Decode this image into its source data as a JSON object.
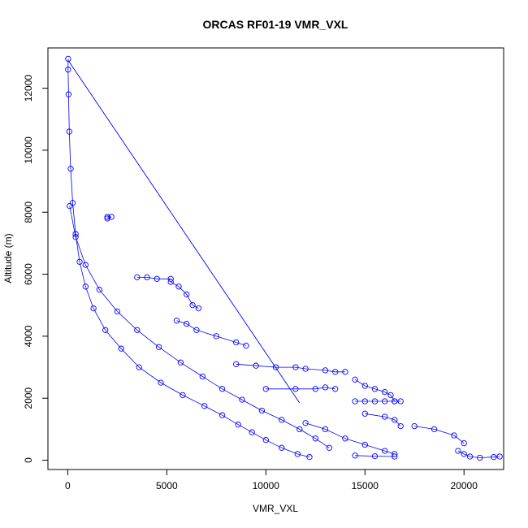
{
  "chart_data": {
    "type": "scatter",
    "title": "ORCAS RF01-19 VMR_VXL",
    "xlabel": "VMR_VXL",
    "ylabel": "Altitude (m)",
    "xlim": [
      -1000,
      22000
    ],
    "ylim": [
      -300,
      13300
    ],
    "x_ticks": [
      0,
      5000,
      10000,
      15000,
      20000
    ],
    "x_tick_labels": [
      "0",
      "5000",
      "10000",
      "15000",
      "20000"
    ],
    "y_ticks": [
      0,
      2000,
      4000,
      6000,
      8000,
      10000,
      12000
    ],
    "y_tick_labels": [
      "0",
      "2000",
      "4000",
      "6000",
      "8000",
      "10000",
      "12000"
    ],
    "grid": false,
    "legend": "none",
    "marker": "open-circle",
    "connected_with_lines": true,
    "color": "#0000ff",
    "series": [
      {
        "x": [
          20,
          15,
          40,
          80,
          150,
          250,
          400,
          600,
          900,
          1300,
          1900,
          2700,
          3600,
          4700,
          5800,
          6900,
          7800,
          8600,
          9300,
          10000,
          10800,
          11600,
          12200
        ],
        "y": [
          12950,
          12600,
          11800,
          10600,
          9400,
          8300,
          7300,
          6400,
          5600,
          4900,
          4200,
          3600,
          3000,
          2500,
          2100,
          1750,
          1450,
          1150,
          900,
          650,
          400,
          200,
          100
        ]
      },
      {
        "x": [
          100,
          400,
          900,
          1600,
          2500,
          3500,
          4600,
          5700,
          6800,
          7800,
          8800,
          9800,
          10800,
          11700,
          12500,
          13200
        ],
        "y": [
          8200,
          7200,
          6300,
          5500,
          4800,
          4200,
          3650,
          3150,
          2700,
          2300,
          1950,
          1600,
          1300,
          1000,
          700,
          400
        ]
      },
      {
        "x": [
          2000,
          2200,
          2000
        ],
        "y": [
          7850,
          7850,
          7800
        ]
      },
      {
        "x": [
          3500,
          4000,
          4500,
          5200
        ],
        "y": [
          5900,
          5900,
          5850,
          5850
        ]
      },
      {
        "x": [
          5200,
          5600,
          6000,
          6300,
          6600
        ],
        "y": [
          5750,
          5600,
          5350,
          5000,
          4900
        ]
      },
      {
        "x": [
          5500,
          6000,
          6500,
          7500,
          8500,
          9000
        ],
        "y": [
          4500,
          4400,
          4200,
          4000,
          3800,
          3700
        ]
      },
      {
        "x": [
          8500,
          9500,
          10500,
          11500,
          12000,
          13000,
          13500,
          14000
        ],
        "y": [
          3100,
          3050,
          3000,
          3000,
          2950,
          2900,
          2850,
          2850
        ]
      },
      {
        "x": [
          10000,
          11500,
          12500,
          13000,
          13500
        ],
        "y": [
          2300,
          2300,
          2300,
          2350,
          2300
        ]
      },
      {
        "x": [
          14500,
          15000,
          15500,
          16000,
          16300,
          16500
        ],
        "y": [
          2600,
          2400,
          2300,
          2200,
          2100,
          1900
        ]
      },
      {
        "x": [
          14500,
          15000,
          15500,
          16000,
          16500,
          16800
        ],
        "y": [
          1900,
          1900,
          1900,
          1900,
          1900,
          1900
        ]
      },
      {
        "x": [
          15000,
          16000,
          16500,
          16800
        ],
        "y": [
          1500,
          1400,
          1300,
          1100
        ]
      },
      {
        "x": [
          17500,
          18500,
          19500,
          20000
        ],
        "y": [
          1100,
          1000,
          800,
          550
        ]
      },
      {
        "x": [
          12000,
          13000,
          14000,
          15000,
          16000,
          16500
        ],
        "y": [
          1200,
          1000,
          700,
          500,
          300,
          200
        ]
      },
      {
        "x": [
          14500,
          15500,
          16500
        ],
        "y": [
          150,
          130,
          120
        ]
      },
      {
        "x": [
          19700,
          20000,
          20300,
          20800,
          21500,
          21800
        ],
        "y": [
          300,
          200,
          120,
          80,
          100,
          120
        ]
      }
    ],
    "connector_line": {
      "x": [
        20,
        11700
      ],
      "y": [
        12900,
        1850
      ]
    }
  }
}
